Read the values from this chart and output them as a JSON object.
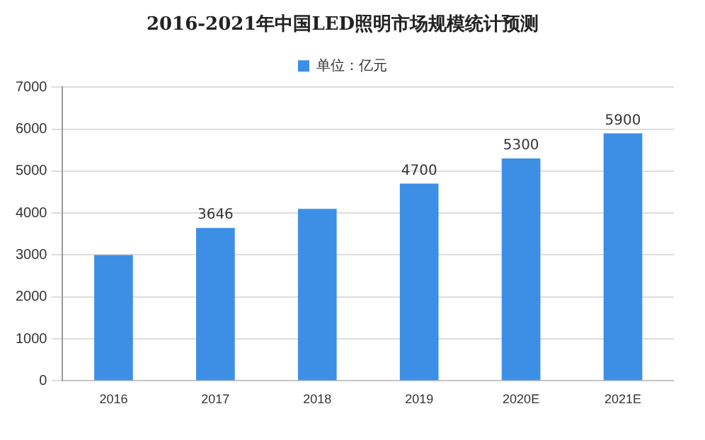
{
  "chart_data": {
    "type": "bar",
    "title": "2016-2021年中国LED照明市场规模统计预测",
    "categories": [
      "2016",
      "2017",
      "2018",
      "2019",
      "2020E",
      "2021E"
    ],
    "series": [
      {
        "name": "单位：亿元",
        "color": "#3d8fe6",
        "values": [
          3000,
          3646,
          4100,
          4700,
          5300,
          5900
        ],
        "value_labels": [
          null,
          "3646",
          null,
          "4700",
          "5300",
          "5900"
        ]
      }
    ],
    "ylim": [
      0,
      7000
    ],
    "yticks": [
      0,
      1000,
      2000,
      3000,
      4000,
      5000,
      6000,
      7000
    ],
    "grid": "y",
    "legend": "top"
  }
}
